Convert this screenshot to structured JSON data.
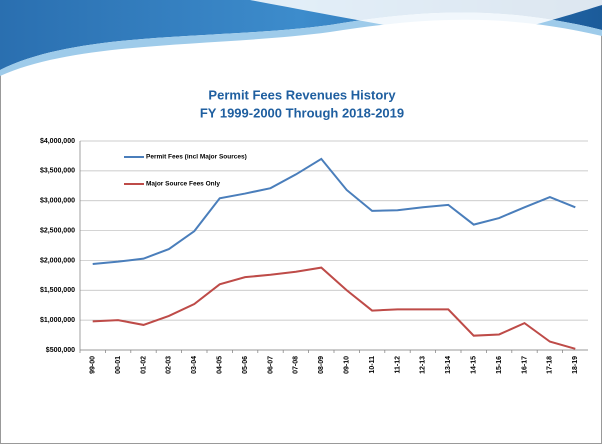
{
  "chart_data": {
    "type": "line",
    "title": "Permit Fees Revenues History",
    "subtitle": "FY 1999-2000 Through 2018-2019",
    "categories": [
      "99-00",
      "00-01",
      "01-02",
      "02-03",
      "03-04",
      "04-05",
      "05-06",
      "06-07",
      "07-08",
      "08-09",
      "09-10",
      "10-11",
      "11-12",
      "12-13",
      "13-14",
      "14-15",
      "15-16",
      "16-17",
      "17-18",
      "18-19"
    ],
    "series": [
      {
        "name": "Permit Fees (incl Major Sources)",
        "color": "#4a7ebb",
        "values": [
          1940000,
          1980000,
          2030000,
          2190000,
          2490000,
          3040000,
          3120000,
          3210000,
          3440000,
          3700000,
          3180000,
          2830000,
          2840000,
          2890000,
          2930000,
          2600000,
          2710000,
          2890000,
          3060000,
          2890000
        ]
      },
      {
        "name": "Major Source Fees Only",
        "color": "#be4b48",
        "values": [
          980000,
          1000000,
          920000,
          1070000,
          1270000,
          1600000,
          1720000,
          1760000,
          1810000,
          1880000,
          1500000,
          1160000,
          1180000,
          1180000,
          1180000,
          740000,
          760000,
          950000,
          640000,
          520000
        ]
      }
    ],
    "ylim": [
      500000,
      4000000
    ],
    "yticks": [
      {
        "value": 500000,
        "label": "$500,000"
      },
      {
        "value": 1000000,
        "label": "$1,000,000"
      },
      {
        "value": 1500000,
        "label": "$1,500,000"
      },
      {
        "value": 2000000,
        "label": "$2,000,000"
      },
      {
        "value": 2500000,
        "label": "$2,500,000"
      },
      {
        "value": 3000000,
        "label": "$3,000,000"
      },
      {
        "value": 3500000,
        "label": "$3,500,000"
      },
      {
        "value": 4000000,
        "label": "$4,000,000"
      }
    ],
    "grid": true,
    "legend": "top-left"
  }
}
